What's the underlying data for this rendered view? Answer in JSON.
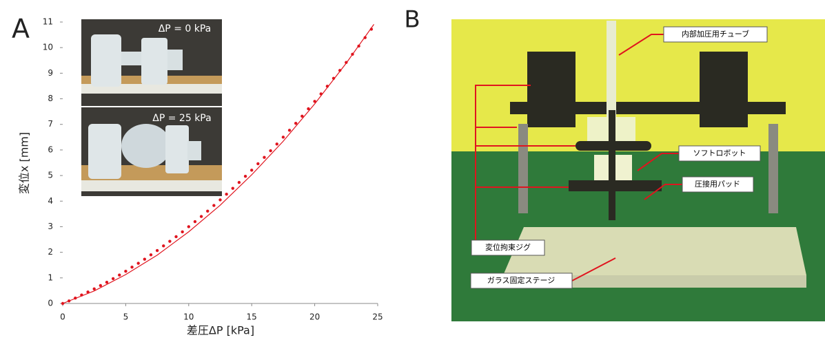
{
  "panel_labels": [
    "A",
    "B"
  ],
  "chart_data": {
    "type": "scatter",
    "x_label": "差圧ΔP [kPa]",
    "y_label": "変位x [mm]",
    "xlim": [
      0,
      25
    ],
    "ylim": [
      0,
      11
    ],
    "xticks": [
      0,
      5,
      10,
      15,
      20,
      25
    ],
    "yticks": [
      0,
      1,
      2,
      3,
      4,
      5,
      6,
      7,
      8,
      9,
      10,
      11
    ],
    "series": [
      {
        "style": "markers",
        "color": "#e0141e",
        "x": [
          0,
          0.5,
          1,
          1.5,
          2,
          2.5,
          3,
          3.5,
          4,
          4.5,
          5,
          5.5,
          6,
          6.5,
          7,
          7.5,
          8,
          8.5,
          9,
          9.5,
          10,
          10.5,
          11,
          11.5,
          12,
          12.5,
          13,
          13.5,
          14,
          14.5,
          15,
          15.5,
          16,
          16.5,
          17,
          17.5,
          18,
          18.5,
          19,
          19.5,
          20,
          20.5,
          21,
          21.5,
          22,
          22.5,
          23,
          23.5,
          24,
          24.5
        ],
        "values": [
          0,
          0.1,
          0.21,
          0.33,
          0.45,
          0.57,
          0.7,
          0.83,
          0.97,
          1.11,
          1.26,
          1.42,
          1.57,
          1.73,
          1.9,
          2.07,
          2.25,
          2.43,
          2.61,
          2.8,
          3,
          3.2,
          3.4,
          3.61,
          3.83,
          4.05,
          4.27,
          4.5,
          4.73,
          4.97,
          5.21,
          5.46,
          5.71,
          5.97,
          6.23,
          6.5,
          6.77,
          7.04,
          7.32,
          7.61,
          7.9,
          8.19,
          8.49,
          8.8,
          9.11,
          9.42,
          9.74,
          10.06,
          10.39,
          10.72
        ]
      },
      {
        "style": "line",
        "color": "#e0141e",
        "x": [
          0,
          2.5,
          5,
          7.5,
          10,
          12.5,
          15,
          17.5,
          20,
          22.5,
          24.7
        ],
        "values": [
          0,
          0.49,
          1.13,
          1.89,
          2.8,
          3.84,
          5.03,
          6.34,
          7.8,
          9.39,
          10.91
        ]
      }
    ],
    "inset_labels": [
      "ΔP = 0 kPa",
      "ΔP = 25 kPa"
    ]
  },
  "photo_labels": [
    "内部加圧用チューブ",
    "ソフトロボット",
    "圧接用パッド",
    "変位拘束ジグ",
    "ガラス固定ステージ"
  ]
}
